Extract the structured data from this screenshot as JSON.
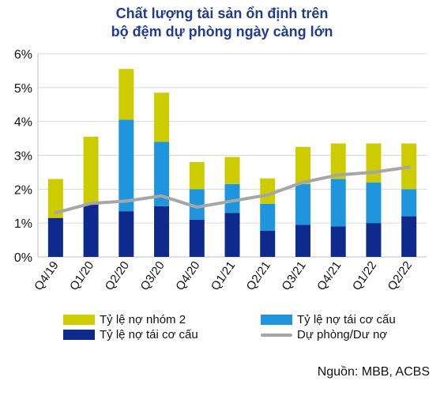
{
  "title_line1": "Chất lượng tài sản ổn định trên",
  "title_line2": "bộ đệm dự phòng ngày càng lớn",
  "source": "Nguồn: MBB, ACBS",
  "colors": {
    "nhom2": "#cccc00",
    "restructure_light": "#1f95dd",
    "restructure_dark": "#0d2a8c",
    "provision": "#a6a6a6",
    "title": "#1f3d8f"
  },
  "chart_data": {
    "type": "bar",
    "stacked": true,
    "categories": [
      "Q4/19",
      "Q1/20",
      "Q2/20",
      "Q3/20",
      "Q4/20",
      "Q1/21",
      "Q2/21",
      "Q3/21",
      "Q4/21",
      "Q1/22",
      "Q2/22"
    ],
    "yticks": [
      "0%",
      "1%",
      "2%",
      "3%",
      "4%",
      "5%",
      "6%"
    ],
    "ylim": [
      0,
      6
    ],
    "series": [
      {
        "name": "Tỷ lệ nợ tái cơ cấu",
        "kind": "bar",
        "color_key": "restructure_dark",
        "values": [
          1.15,
          1.55,
          1.35,
          1.5,
          1.1,
          1.3,
          0.77,
          0.95,
          0.9,
          1.0,
          1.2
        ]
      },
      {
        "name": "Tỷ lệ nợ tái cơ cấu",
        "kind": "bar",
        "color_key": "restructure_light",
        "values": [
          0.0,
          0.0,
          2.7,
          1.9,
          0.9,
          0.85,
          0.8,
          1.2,
          1.4,
          1.2,
          0.8
        ]
      },
      {
        "name": "Tỷ lệ nợ nhóm 2",
        "kind": "bar",
        "color_key": "nhom2",
        "values": [
          1.15,
          2.0,
          1.5,
          1.45,
          0.8,
          0.8,
          0.75,
          1.1,
          1.05,
          1.15,
          1.35
        ]
      },
      {
        "name": "Dự phòng/Dư nợ",
        "kind": "line",
        "color_key": "provision",
        "values": [
          1.3,
          1.58,
          1.65,
          1.8,
          1.47,
          1.65,
          1.83,
          2.2,
          2.42,
          2.5,
          2.65
        ]
      }
    ],
    "legend": [
      {
        "label": "Tỷ lệ nợ nhóm 2",
        "color_key": "nhom2",
        "kind": "bar"
      },
      {
        "label": "Tỷ lệ nợ tái cơ cấu",
        "color_key": "restructure_light",
        "kind": "bar"
      },
      {
        "label": "Tỷ lệ nợ tái cơ cấu",
        "color_key": "restructure_dark",
        "kind": "bar"
      },
      {
        "label": "Dự phòng/Dư nợ",
        "color_key": "provision",
        "kind": "line"
      }
    ],
    "grid": true,
    "legend_position": "bottom"
  }
}
